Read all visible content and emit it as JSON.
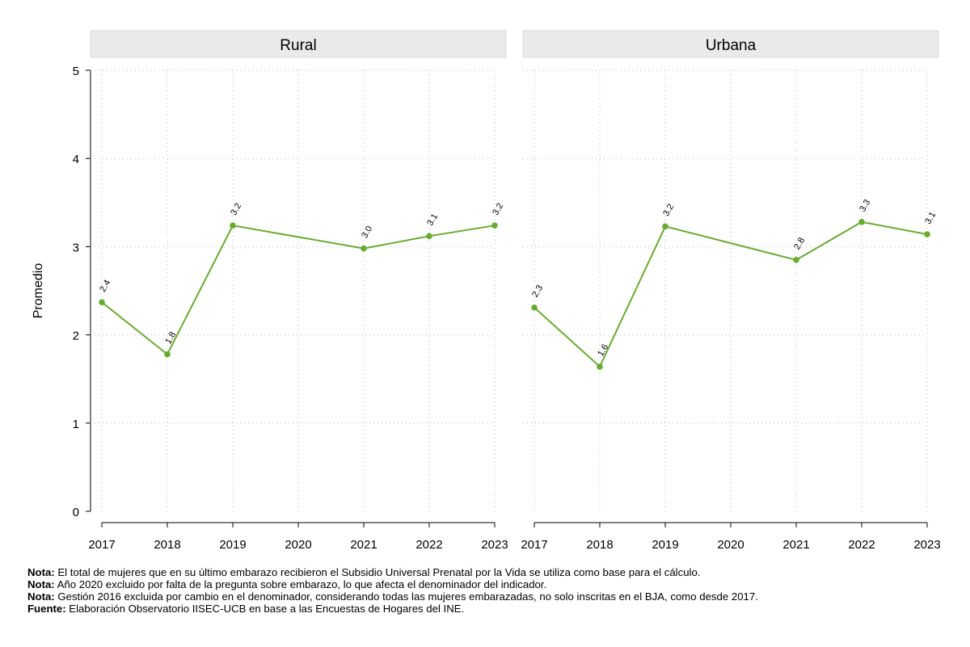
{
  "chart_data": {
    "type": "line",
    "ylabel": "Promedio",
    "ylim": [
      0,
      5
    ],
    "yticks": [
      0,
      1,
      2,
      3,
      4,
      5
    ],
    "xticks": [
      2017,
      2018,
      2019,
      2020,
      2021,
      2022,
      2023
    ],
    "xlim": [
      2017,
      2023
    ],
    "grid": true,
    "line_color": "#6aaa32",
    "panels": [
      {
        "title": "Rural",
        "x": [
          2017,
          2018,
          2019,
          2021,
          2022,
          2023
        ],
        "values": [
          2.37,
          1.78,
          3.24,
          2.98,
          3.12,
          3.24
        ],
        "labels": [
          "2.4",
          "1.8",
          "3.2",
          "3.0",
          "3.1",
          "3.2"
        ]
      },
      {
        "title": "Urbana",
        "x": [
          2017,
          2018,
          2019,
          2021,
          2022,
          2023
        ],
        "values": [
          2.31,
          1.64,
          3.23,
          2.85,
          3.28,
          3.14
        ],
        "labels": [
          "2.3",
          "1.6",
          "3.2",
          "2.8",
          "3.3",
          "3.1"
        ]
      }
    ]
  },
  "notes": [
    {
      "label": "Nota:",
      "text": " El total de mujeres que en su último embarazo recibieron el Subsidio Universal Prenatal por la Vida se utiliza como base para el cálculo."
    },
    {
      "label": "Nota:",
      "text": " Año 2020 excluido por falta de la pregunta sobre embarazo, lo que afecta el denominador del indicador."
    },
    {
      "label": "Nota:",
      "text": " Gestión 2016 excluida por cambio en el denominador, considerando todas las mujeres embarazadas, no solo inscritas en el BJA, como desde 2017."
    },
    {
      "label": "Fuente:",
      "text": " Elaboración Observatorio IISEC-UCB en base a las Encuestas de Hogares del INE."
    }
  ]
}
